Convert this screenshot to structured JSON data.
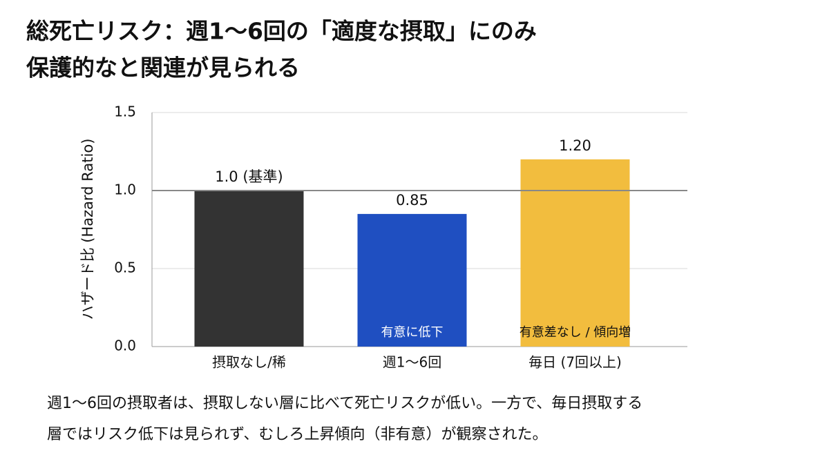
{
  "chart_data": {
    "type": "bar",
    "title": [
      "総死亡リスク：週1〜6回の「適度な摂取」にのみ",
      "保護的なと関連が見られる"
    ],
    "y_label": "ハザード比 (Hazard Ratio)",
    "categories": [
      "摂取なし/稀",
      "週1〜6回",
      "毎日 (7回以上)"
    ],
    "values": [
      1.0,
      0.85,
      1.2
    ],
    "value_labels": [
      "1.0 (基準)",
      "0.85",
      "1.20"
    ],
    "bar_annotations": [
      null,
      "有意に低下",
      "有意差なし / 傾向増"
    ],
    "colors": [
      "#333333",
      "#1f4fc1",
      "#f2bd3e"
    ],
    "ylim": [
      0,
      1.5
    ],
    "yticks": [
      {
        "value": 0,
        "label": "0.0"
      },
      0.5,
      {
        "value": 1,
        "label": "1.0"
      },
      1.5
    ],
    "reference_line": 1,
    "grid": true,
    "caption": [
      "週1〜6回の摂取者は、摂取しない層に比べて死亡リスクが低い。一方で、毎日摂取する",
      "層ではリスク低下は見られず、むしろ上昇傾向（非有意）が観察された。"
    ]
  }
}
